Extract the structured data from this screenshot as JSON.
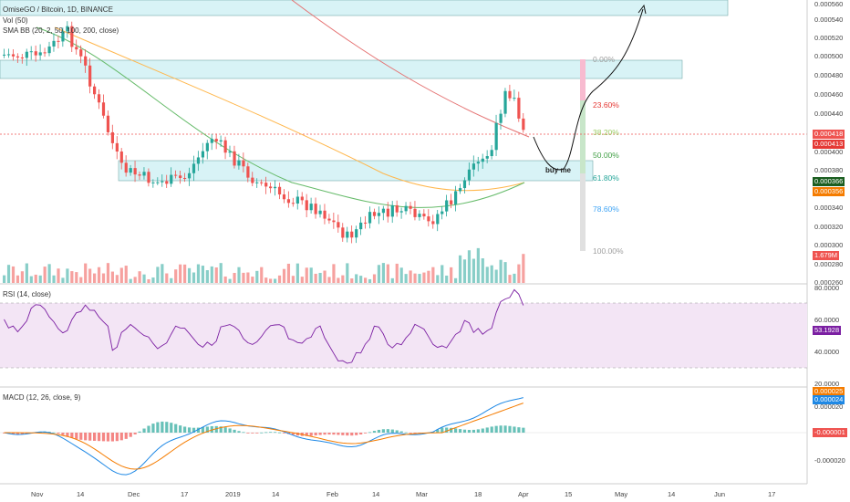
{
  "legend": {
    "title": "OmiseGO / Bitcoin, 1D, BINANCE",
    "vol": "Vol (50)",
    "bb": "SMA BB (20, 2, 50, 100, 200, close)",
    "rsi": "RSI (14, close)",
    "macd": "MACD (12, 26, close, 9)"
  },
  "annotation": {
    "buy": "buy me"
  },
  "fib_levels": [
    {
      "label": "0.00%",
      "color": "#9e9e9e"
    },
    {
      "label": "23.60%",
      "color": "#e53935"
    },
    {
      "label": "38.20%",
      "color": "#9ccc65"
    },
    {
      "label": "50.00%",
      "color": "#43a047"
    },
    {
      "label": "61.80%",
      "color": "#26a69a"
    },
    {
      "label": "78.60%",
      "color": "#42a5f5"
    },
    {
      "label": "100.00%",
      "color": "#9e9e9e"
    }
  ],
  "price_axis": [
    "0.000560",
    "0.000540",
    "0.000520",
    "0.000500",
    "0.000480",
    "0.000460",
    "0.000440",
    "0.000400",
    "0.000380",
    "0.000340",
    "0.000320",
    "0.000300",
    "0.000280",
    "0.000260"
  ],
  "price_badges": [
    {
      "text": "0.000418",
      "color": "#ef5350"
    },
    {
      "text": "0.000413",
      "color": "#e53935"
    },
    {
      "text": "0.000366",
      "color": "#1b5e20"
    },
    {
      "text": "0.000356",
      "color": "#f57c00"
    },
    {
      "text": "1.679M",
      "color": "#ef5350"
    }
  ],
  "rsi_axis": [
    "80.0000",
    "60.0000",
    "40.0000",
    "20.0000"
  ],
  "rsi_badge": {
    "text": "53.1928",
    "color": "#7b1fa2"
  },
  "macd_axis": [
    "0.000020",
    "-0.000020"
  ],
  "macd_badges": [
    {
      "text": "0.000025",
      "color": "#f57c00"
    },
    {
      "text": "0.000024",
      "color": "#1e88e5"
    },
    {
      "text": "-0.000001",
      "color": "#ef5350"
    }
  ],
  "time_axis": [
    "Nov",
    "14",
    "Dec",
    "17",
    "2019",
    "14",
    "Feb",
    "14",
    "Mar",
    "18",
    "Apr",
    "15",
    "May",
    "14",
    "Jun",
    "17"
  ],
  "colors": {
    "up": "#26a69a",
    "down": "#ef5350",
    "zone": "#b2ebf2",
    "rsi_band": "#f3e5f5"
  }
}
